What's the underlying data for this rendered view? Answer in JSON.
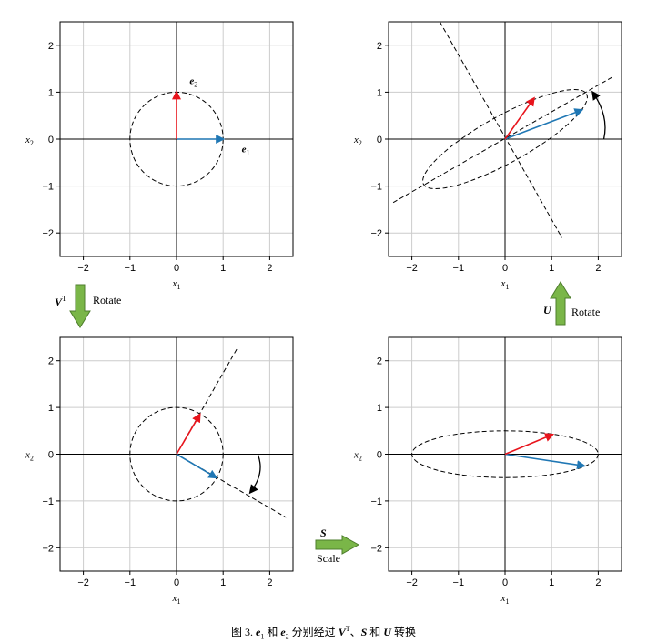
{
  "colors": {
    "e1_vector": "#1f77b4",
    "e2_vector": "#e8141c",
    "transform_arrow": "#7ab648",
    "grid": "#cccccc"
  },
  "axes": {
    "x_label": "x",
    "x_subscript": "1",
    "y_label": "x",
    "y_subscript": "2",
    "xlim": [
      -2.5,
      2.5
    ],
    "ylim": [
      -2.5,
      2.5
    ],
    "ticks": [
      -2,
      -1,
      0,
      1,
      2
    ],
    "tick_labels": [
      "−2",
      "−1",
      "0",
      "1",
      "2"
    ]
  },
  "panels": [
    {
      "id": "top-left",
      "vectors": [
        {
          "name": "e1",
          "color": "#1f77b4",
          "to": [
            1.0,
            0.0
          ]
        },
        {
          "name": "e2",
          "color": "#e8141c",
          "to": [
            0.0,
            1.0
          ]
        }
      ],
      "vector_labels": [
        {
          "text": "e",
          "sub": "1",
          "at": [
            1.4,
            -0.2
          ]
        },
        {
          "text": "e",
          "sub": "2",
          "at": [
            0.28,
            1.25
          ]
        }
      ],
      "ellipse": {
        "rx": 1.0,
        "ry": 1.0,
        "angle_deg": 0
      },
      "dashed_lines": [],
      "rotation_arrow": null
    },
    {
      "id": "top-right",
      "vectors": [
        {
          "name": "e1",
          "color": "#1f77b4",
          "to": [
            1.65,
            0.62
          ]
        },
        {
          "name": "e2",
          "color": "#e8141c",
          "to": [
            0.62,
            0.87
          ]
        }
      ],
      "vector_labels": [],
      "ellipse": {
        "rx": 2.0,
        "ry": 0.5,
        "angle_deg": 29
      },
      "dashed_lines": [
        {
          "from": [
            -2.4,
            -1.35
          ],
          "to": [
            2.3,
            1.32
          ]
        },
        {
          "from": [
            -1.4,
            2.5
          ],
          "to": [
            1.22,
            -2.1
          ]
        }
      ],
      "rotation_arrow": {
        "from": [
          2.12,
          0.0
        ],
        "to": [
          1.88,
          1.0
        ]
      }
    },
    {
      "id": "bottom-left",
      "vectors": [
        {
          "name": "e1",
          "color": "#1f77b4",
          "to": [
            0.85,
            -0.5
          ]
        },
        {
          "name": "e2",
          "color": "#e8141c",
          "to": [
            0.5,
            0.85
          ]
        }
      ],
      "vector_labels": [],
      "ellipse": {
        "rx": 1.0,
        "ry": 1.0,
        "angle_deg": 0
      },
      "dashed_lines": [
        {
          "from": [
            0.0,
            0.0
          ],
          "to": [
            1.3,
            2.26
          ]
        },
        {
          "from": [
            0.0,
            0.0
          ],
          "to": [
            2.35,
            -1.35
          ]
        }
      ],
      "rotation_arrow": {
        "from": [
          1.75,
          -0.02
        ],
        "to": [
          1.58,
          -0.82
        ]
      }
    },
    {
      "id": "bottom-right",
      "vectors": [
        {
          "name": "e1",
          "color": "#1f77b4",
          "to": [
            1.7,
            -0.25
          ]
        },
        {
          "name": "e2",
          "color": "#e8141c",
          "to": [
            1.02,
            0.42
          ]
        }
      ],
      "vector_labels": [],
      "ellipse": {
        "rx": 2.0,
        "ry": 0.5,
        "angle_deg": 0
      },
      "dashed_lines": [],
      "rotation_arrow": null
    }
  ],
  "transforms": {
    "vt": {
      "symbol": "V",
      "sup": "T",
      "label": "Rotate"
    },
    "s": {
      "symbol": "S",
      "label": "Scale"
    },
    "u": {
      "symbol": "U",
      "label": "Rotate"
    }
  },
  "caption": {
    "prefix": "图 3. ",
    "e": "e",
    "sub1": "1",
    "and1": " 和 ",
    "sub2": "2",
    "middle": " 分别经过 ",
    "v": "V",
    "vsup": "T",
    "sep": "、",
    "s": "S",
    "and2": " 和 ",
    "u": "U",
    "suffix": " 转换"
  }
}
